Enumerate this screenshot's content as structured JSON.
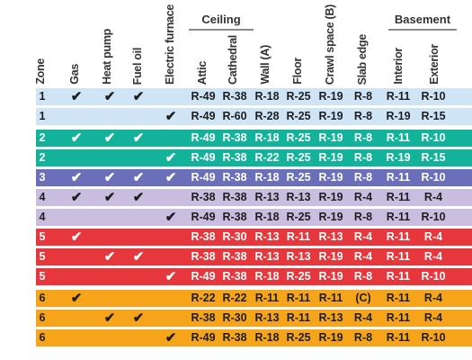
{
  "header": {
    "zone": "Zone",
    "gas": "Gas",
    "heat_pump": "Heat pump",
    "fuel_oil": "Fuel oil",
    "electric_furnace": "Electric furnace",
    "ceiling_group": "Ceiling",
    "attic": "Attic",
    "cathedral": "Cathedral",
    "wall": "Wall (A)",
    "floor": "Floor",
    "crawl_space": "Crawl space (B)",
    "slab_edge": "Slab edge",
    "basement_group": "Basement",
    "interior": "Interior",
    "exterior": "Exterior"
  },
  "check_mark": "✔",
  "colors": {
    "light_blue": "#cfe4f5",
    "teal": "#12b39a",
    "purple": "#6b6fba",
    "lavender": "#c9bde0",
    "red": "#e5373c",
    "orange": "#f6a51a"
  },
  "rows": [
    {
      "zone": "1",
      "gas": true,
      "heat_pump": true,
      "fuel_oil": true,
      "electric": false,
      "attic": "R-49",
      "cathedral": "R-38",
      "wall": "R-18",
      "floor": "R-25",
      "crawl": "R-19",
      "slab": "R-8",
      "interior": "R-11",
      "exterior": "R-10",
      "color": "light_blue",
      "text": "dark"
    },
    {
      "zone": "1",
      "gas": false,
      "heat_pump": false,
      "fuel_oil": false,
      "electric": true,
      "attic": "R-49",
      "cathedral": "R-60",
      "wall": "R-28",
      "floor": "R-25",
      "crawl": "R-19",
      "slab": "R-8",
      "interior": "R-19",
      "exterior": "R-15",
      "color": "light_blue",
      "text": "dark"
    },
    {
      "zone": "2",
      "gas": true,
      "heat_pump": true,
      "fuel_oil": true,
      "electric": false,
      "attic": "R-49",
      "cathedral": "R-38",
      "wall": "R-18",
      "floor": "R-25",
      "crawl": "R-19",
      "slab": "R-8",
      "interior": "R-11",
      "exterior": "R-10",
      "color": "teal",
      "text": "light"
    },
    {
      "zone": "2",
      "gas": false,
      "heat_pump": false,
      "fuel_oil": false,
      "electric": true,
      "attic": "R-49",
      "cathedral": "R-38",
      "wall": "R-22",
      "floor": "R-25",
      "crawl": "R-19",
      "slab": "R-8",
      "interior": "R-19",
      "exterior": "R-15",
      "color": "teal",
      "text": "light"
    },
    {
      "zone": "3",
      "gas": true,
      "heat_pump": true,
      "fuel_oil": true,
      "electric": true,
      "attic": "R-49",
      "cathedral": "R-38",
      "wall": "R-18",
      "floor": "R-25",
      "crawl": "R-19",
      "slab": "R-8",
      "interior": "R-11",
      "exterior": "R-10",
      "color": "purple",
      "text": "light"
    },
    {
      "zone": "4",
      "gas": true,
      "heat_pump": true,
      "fuel_oil": true,
      "electric": false,
      "attic": "R-38",
      "cathedral": "R-38",
      "wall": "R-13",
      "floor": "R-13",
      "crawl": "R-19",
      "slab": "R-4",
      "interior": "R-11",
      "exterior": "R-4",
      "color": "lavender",
      "text": "dark"
    },
    {
      "zone": "4",
      "gas": false,
      "heat_pump": false,
      "fuel_oil": false,
      "electric": true,
      "attic": "R-49",
      "cathedral": "R-38",
      "wall": "R-18",
      "floor": "R-25",
      "crawl": "R-19",
      "slab": "R-8",
      "interior": "R-11",
      "exterior": "R-10",
      "color": "lavender",
      "text": "dark"
    },
    {
      "zone": "5",
      "gas": true,
      "heat_pump": false,
      "fuel_oil": false,
      "electric": false,
      "attic": "R-38",
      "cathedral": "R-30",
      "wall": "R-13",
      "floor": "R-11",
      "crawl": "R-13",
      "slab": "R-4",
      "interior": "R-11",
      "exterior": "R-4",
      "color": "red",
      "text": "light"
    },
    {
      "zone": "5",
      "gas": false,
      "heat_pump": true,
      "fuel_oil": true,
      "electric": false,
      "attic": "R-38",
      "cathedral": "R-38",
      "wall": "R-13",
      "floor": "R-13",
      "crawl": "R-19",
      "slab": "R-4",
      "interior": "R-11",
      "exterior": "R-4",
      "color": "red",
      "text": "light"
    },
    {
      "zone": "5",
      "gas": false,
      "heat_pump": false,
      "fuel_oil": false,
      "electric": true,
      "attic": "R-49",
      "cathedral": "R-38",
      "wall": "R-18",
      "floor": "R-25",
      "crawl": "R-19",
      "slab": "R-8",
      "interior": "R-11",
      "exterior": "R-10",
      "color": "red",
      "text": "light"
    },
    {
      "zone": "6",
      "gas": true,
      "heat_pump": false,
      "fuel_oil": false,
      "electric": false,
      "attic": "R-22",
      "cathedral": "R-22",
      "wall": "R-11",
      "floor": "R-11",
      "crawl": "R-11",
      "slab": "(C)",
      "interior": "R-11",
      "exterior": "R-4",
      "color": "orange",
      "text": "dark"
    },
    {
      "zone": "6",
      "gas": false,
      "heat_pump": true,
      "fuel_oil": true,
      "electric": false,
      "attic": "R-38",
      "cathedral": "R-30",
      "wall": "R-13",
      "floor": "R-11",
      "crawl": "R-13",
      "slab": "R-4",
      "interior": "R-11",
      "exterior": "R-4",
      "color": "orange",
      "text": "dark"
    },
    {
      "zone": "6",
      "gas": false,
      "heat_pump": false,
      "fuel_oil": false,
      "electric": true,
      "attic": "R-49",
      "cathedral": "R-38",
      "wall": "R-18",
      "floor": "R-25",
      "crawl": "R-19",
      "slab": "R-8",
      "interior": "R-11",
      "exterior": "R-10",
      "color": "orange",
      "text": "dark"
    }
  ]
}
